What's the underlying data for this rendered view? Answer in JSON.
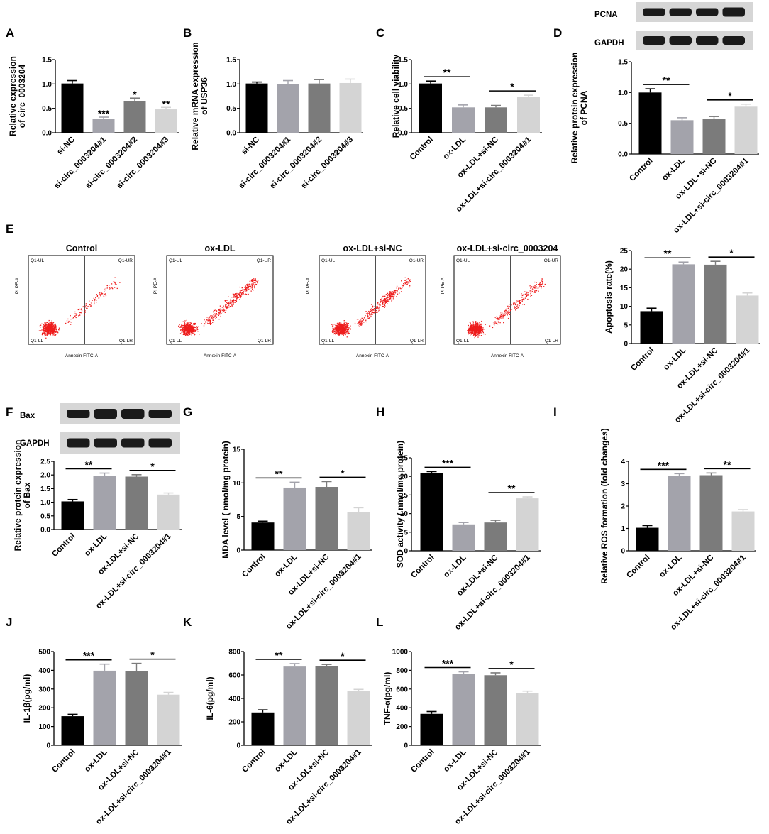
{
  "colors": {
    "black": "#000000",
    "grey_light": "#a3a3ab",
    "grey_dark": "#7b7b7b",
    "grey_pale": "#d4d4d4",
    "scatter": "#ee1c1c",
    "blot": "#1a1a1a"
  },
  "panels": [
    {
      "letter": "A",
      "ylabel_lines": [
        "Relative expression",
        "of circ_0003204"
      ],
      "ylim": [
        0,
        1.5
      ],
      "ticks": [
        "0.0",
        "0.5",
        "1.0",
        "1.5"
      ],
      "categories": [
        "si-NC",
        "si-circ_0003204#1",
        "si-circ_0003204#2",
        "si-circ_0003204#3"
      ]
    },
    {
      "letter": "B",
      "ylabel_lines": [
        "Relative mRNA expression",
        "of USP36"
      ],
      "ylim": [
        0,
        1.5
      ],
      "ticks": [
        "0.0",
        "0.5",
        "1.0",
        "1.5"
      ],
      "categories": [
        "si-NC",
        "si-circ_0003204#1",
        "si-circ_0003204#2",
        "si-circ_0003204#3"
      ]
    },
    {
      "letter": "C",
      "ylabel_lines": [
        "Relative cell viability"
      ],
      "ylim": [
        0,
        1.5
      ],
      "ticks": [
        "0.0",
        "0.5",
        "1.0",
        "1.5"
      ],
      "categories": [
        "Control",
        "ox-LDL",
        "ox-LDL+si-NC",
        "ox-LDL+si-circ_0003204#1"
      ]
    },
    {
      "letter": "D",
      "ylabel_lines": [
        "Relative protein expression",
        "of PCNA"
      ],
      "ylim": [
        0,
        1.5
      ],
      "ticks": [
        "0.0",
        "0.5",
        "1.0",
        "1.5"
      ],
      "categories": [
        "Control",
        "ox-LDL",
        "ox-LDL+si-NC",
        "ox-LDL+si-circ_0003204#1"
      ],
      "blots": [
        "PCNA",
        "GAPDH"
      ]
    },
    {
      "letter": "E",
      "ylabel_lines": [
        "Apoptosis rate(%)"
      ],
      "ylim": [
        0,
        25
      ],
      "ticks": [
        "0",
        "5",
        "10",
        "15",
        "20",
        "25"
      ],
      "categories": [
        "Control",
        "ox-LDL",
        "ox-LDL+si-NC",
        "ox-LDL+si-circ_0003204#1"
      ],
      "flow_titles": [
        "Control",
        "ox-LDL",
        "ox-LDL+si-NC",
        "ox-LDL+si-circ_0003204"
      ],
      "flow_quadrants": [
        "Q1-UL",
        "Q1-UR",
        "Q1-LL",
        "Q1-LR"
      ],
      "flow_xlabel": "Annexin FITC-A",
      "flow_ylabel": "PI PE-A"
    },
    {
      "letter": "F",
      "ylabel_lines": [
        "Relative protein expression",
        "of Bax"
      ],
      "ylim": [
        0,
        2.5
      ],
      "ticks": [
        "0.0",
        "0.5",
        "1.0",
        "1.5",
        "2.0",
        "2.5"
      ],
      "categories": [
        "Control",
        "ox-LDL",
        "ox-LDL+si-NC",
        "ox-LDL+si-circ_0003204#1"
      ],
      "blots": [
        "Bax",
        "GAPDH"
      ]
    },
    {
      "letter": "G",
      "ylabel_lines": [
        "MDA level ( nmol/mg protein)"
      ],
      "ylim": [
        0,
        15
      ],
      "ticks": [
        "0",
        "5",
        "10",
        "15"
      ],
      "categories": [
        "Control",
        "ox-LDL",
        "ox-LDL+si-NC",
        "ox-LDL+si-circ_0003204#1"
      ]
    },
    {
      "letter": "H",
      "ylabel_lines": [
        "SOD activity ( nmol/mg protein)"
      ],
      "ylim": [
        0,
        25
      ],
      "ticks": [
        "0",
        "5",
        "10",
        "15",
        "20",
        "25"
      ],
      "categories": [
        "Control",
        "ox-LDL",
        "ox-LDL+si-NC",
        "ox-LDL+si-circ_0003204#1"
      ]
    },
    {
      "letter": "I",
      "ylabel_lines": [
        "Relative ROS formation (fold changes)"
      ],
      "ylim": [
        0,
        4
      ],
      "ticks": [
        "0",
        "1",
        "2",
        "3",
        "4"
      ],
      "categories": [
        "Control",
        "ox-LDL",
        "ox-LDL+si-NC",
        "ox-LDL+si-circ_0003204#1"
      ]
    },
    {
      "letter": "J",
      "ylabel_lines": [
        "IL-1β(pg/ml)"
      ],
      "ylim": [
        0,
        500
      ],
      "ticks": [
        "0",
        "100",
        "200",
        "300",
        "400",
        "500"
      ],
      "categories": [
        "Control",
        "ox-LDL",
        "ox-LDL+si-NC",
        "ox-LDL+si-circ_0003204#1"
      ]
    },
    {
      "letter": "K",
      "ylabel_lines": [
        "IL-6(pg/ml)"
      ],
      "ylim": [
        0,
        800
      ],
      "ticks": [
        "0",
        "200",
        "400",
        "600",
        "800"
      ],
      "categories": [
        "Control",
        "ox-LDL",
        "ox-LDL+si-NC",
        "ox-LDL+si-circ_0003204#1"
      ]
    },
    {
      "letter": "L",
      "ylabel_lines": [
        "TNF-α(pg/ml)"
      ],
      "ylim": [
        0,
        1000
      ],
      "ticks": [
        "0",
        "200",
        "400",
        "600",
        "800",
        "1000"
      ],
      "categories": [
        "Control",
        "ox-LDL",
        "ox-LDL+si-NC",
        "ox-LDL+si-circ_0003204#1"
      ]
    }
  ],
  "chart_data": [
    {
      "panel": "A",
      "type": "bar",
      "categories": [
        "si-NC",
        "si-circ_0003204#1",
        "si-circ_0003204#2",
        "si-circ_0003204#3"
      ],
      "values": [
        1.01,
        0.28,
        0.65,
        0.48
      ],
      "errors": [
        0.06,
        0.04,
        0.06,
        0.04
      ],
      "ylim": [
        0,
        1.5
      ],
      "ylabel": "Relative expression of circ_0003204",
      "annotations": [
        {
          "type": "star",
          "bar": 1,
          "text": "***"
        },
        {
          "type": "star",
          "bar": 2,
          "text": "*"
        },
        {
          "type": "star",
          "bar": 3,
          "text": "**"
        }
      ]
    },
    {
      "panel": "B",
      "type": "bar",
      "categories": [
        "si-NC",
        "si-circ_0003204#1",
        "si-circ_0003204#2",
        "si-circ_0003204#3"
      ],
      "values": [
        1.01,
        1.0,
        1.01,
        1.02
      ],
      "errors": [
        0.03,
        0.07,
        0.08,
        0.08
      ],
      "ylim": [
        0,
        1.5
      ],
      "ylabel": "Relative mRNA expression of USP36",
      "annotations": []
    },
    {
      "panel": "C",
      "type": "bar",
      "categories": [
        "Control",
        "ox-LDL",
        "ox-LDL+si-NC",
        "ox-LDL+si-circ_0003204#1"
      ],
      "values": [
        1.01,
        0.52,
        0.52,
        0.74
      ],
      "errors": [
        0.05,
        0.05,
        0.04,
        0.03
      ],
      "ylim": [
        0,
        1.5
      ],
      "ylabel": "Relative cell viability",
      "annotations": [
        {
          "type": "bracket",
          "from": 0,
          "to": 1,
          "text": "**"
        },
        {
          "type": "bracket",
          "from": 2,
          "to": 3,
          "text": "*"
        }
      ]
    },
    {
      "panel": "D",
      "type": "bar",
      "categories": [
        "Control",
        "ox-LDL",
        "ox-LDL+si-NC",
        "ox-LDL+si-circ_0003204#1"
      ],
      "values": [
        1.0,
        0.55,
        0.57,
        0.77
      ],
      "errors": [
        0.06,
        0.04,
        0.04,
        0.04
      ],
      "ylim": [
        0,
        1.5
      ],
      "ylabel": "Relative protein expression of PCNA",
      "annotations": [
        {
          "type": "bracket",
          "from": 0,
          "to": 1,
          "text": "**"
        },
        {
          "type": "bracket",
          "from": 2,
          "to": 3,
          "text": "*"
        }
      ]
    },
    {
      "panel": "E",
      "type": "bar",
      "categories": [
        "Control",
        "ox-LDL",
        "ox-LDL+si-NC",
        "ox-LDL+si-circ_0003204#1"
      ],
      "values": [
        8.7,
        21.3,
        21.2,
        12.9
      ],
      "errors": [
        0.8,
        0.6,
        0.9,
        0.7
      ],
      "ylim": [
        0,
        25
      ],
      "ylabel": "Apoptosis rate(%)",
      "annotations": [
        {
          "type": "bracket",
          "from": 0,
          "to": 1,
          "text": "**"
        },
        {
          "type": "bracket",
          "from": 2,
          "to": 3,
          "text": "*"
        }
      ]
    },
    {
      "panel": "F",
      "type": "bar",
      "categories": [
        "Control",
        "ox-LDL",
        "ox-LDL+si-NC",
        "ox-LDL+si-circ_0003204#1"
      ],
      "values": [
        1.03,
        1.97,
        1.94,
        1.28
      ],
      "errors": [
        0.07,
        0.1,
        0.07,
        0.06
      ],
      "ylim": [
        0,
        2.5
      ],
      "ylabel": "Relative protein expression of Bax",
      "annotations": [
        {
          "type": "bracket",
          "from": 0,
          "to": 1,
          "text": "**"
        },
        {
          "type": "bracket",
          "from": 2,
          "to": 3,
          "text": "*"
        }
      ]
    },
    {
      "panel": "G",
      "type": "bar",
      "categories": [
        "Control",
        "ox-LDL",
        "ox-LDL+si-NC",
        "ox-LDL+si-circ_0003204#1"
      ],
      "values": [
        4.1,
        9.3,
        9.4,
        5.7
      ],
      "errors": [
        0.2,
        0.8,
        0.8,
        0.6
      ],
      "ylim": [
        0,
        15
      ],
      "ylabel": "MDA level ( nmol/mg protein)",
      "annotations": [
        {
          "type": "bracket",
          "from": 0,
          "to": 1,
          "text": "**"
        },
        {
          "type": "bracket",
          "from": 2,
          "to": 3,
          "text": "*"
        }
      ]
    },
    {
      "panel": "H",
      "type": "bar",
      "categories": [
        "Control",
        "ox-LDL",
        "ox-LDL+si-NC",
        "ox-LDL+si-circ_0003204#1"
      ],
      "values": [
        20.9,
        7.1,
        7.6,
        14.1
      ],
      "errors": [
        0.4,
        0.5,
        0.6,
        0.4
      ],
      "ylim": [
        0,
        25
      ],
      "ylabel": "SOD activity ( nmol/mg protein)",
      "annotations": [
        {
          "type": "bracket",
          "from": 0,
          "to": 1,
          "text": "***"
        },
        {
          "type": "bracket",
          "from": 2,
          "to": 3,
          "text": "**"
        }
      ]
    },
    {
      "panel": "I",
      "type": "bar",
      "categories": [
        "Control",
        "ox-LDL",
        "ox-LDL+si-NC",
        "ox-LDL+si-circ_0003204#1"
      ],
      "values": [
        1.03,
        3.35,
        3.38,
        1.76
      ],
      "errors": [
        0.1,
        0.1,
        0.1,
        0.08
      ],
      "ylim": [
        0,
        4
      ],
      "ylabel": "Relative ROS formation (fold changes)",
      "annotations": [
        {
          "type": "bracket",
          "from": 0,
          "to": 1,
          "text": "***"
        },
        {
          "type": "bracket",
          "from": 2,
          "to": 3,
          "text": "**"
        }
      ]
    },
    {
      "panel": "J",
      "type": "bar",
      "categories": [
        "Control",
        "ox-LDL",
        "ox-LDL+si-NC",
        "ox-LDL+si-circ_0003204#1"
      ],
      "values": [
        155,
        398,
        395,
        270
      ],
      "errors": [
        10,
        35,
        42,
        12
      ],
      "ylim": [
        0,
        500
      ],
      "ylabel": "IL-1β(pg/ml)",
      "annotations": [
        {
          "type": "bracket",
          "from": 0,
          "to": 1,
          "text": "***"
        },
        {
          "type": "bracket",
          "from": 2,
          "to": 3,
          "text": "*"
        }
      ]
    },
    {
      "panel": "K",
      "type": "bar",
      "categories": [
        "Control",
        "ox-LDL",
        "ox-LDL+si-NC",
        "ox-LDL+si-circ_0003204#1"
      ],
      "values": [
        280,
        672,
        675,
        462
      ],
      "errors": [
        22,
        25,
        15,
        15
      ],
      "ylim": [
        0,
        800
      ],
      "ylabel": "IL-6(pg/ml)",
      "annotations": [
        {
          "type": "bracket",
          "from": 0,
          "to": 1,
          "text": "**"
        },
        {
          "type": "bracket",
          "from": 2,
          "to": 3,
          "text": "*"
        }
      ]
    },
    {
      "panel": "L",
      "type": "bar",
      "categories": [
        "Control",
        "ox-LDL",
        "ox-LDL+si-NC",
        "ox-LDL+si-circ_0003204#1"
      ],
      "values": [
        335,
        762,
        748,
        560
      ],
      "errors": [
        25,
        22,
        25,
        18
      ],
      "ylim": [
        0,
        1000
      ],
      "ylabel": "TNF-α(pg/ml)",
      "annotations": [
        {
          "type": "bracket",
          "from": 0,
          "to": 1,
          "text": "***"
        },
        {
          "type": "bracket",
          "from": 2,
          "to": 3,
          "text": "*"
        }
      ]
    }
  ]
}
